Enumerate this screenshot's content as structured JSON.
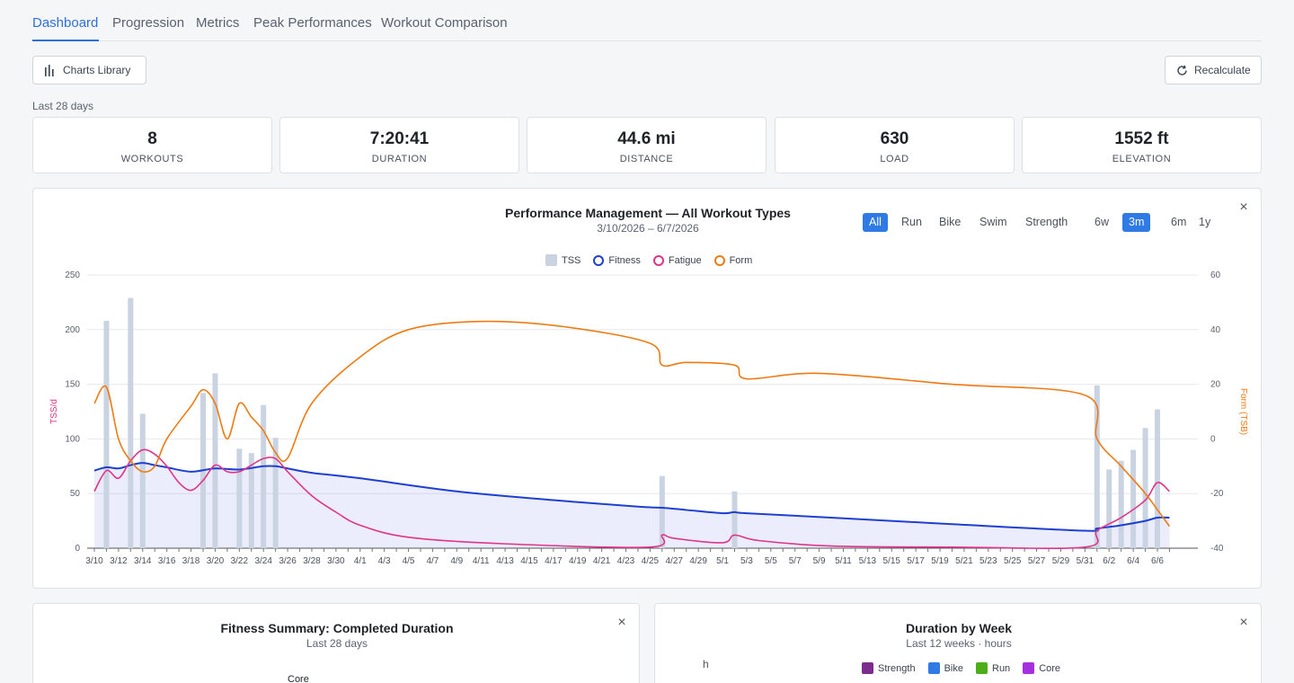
{
  "tabs": [
    {
      "label": "Dashboard",
      "active": true
    },
    {
      "label": "Progression",
      "active": false
    },
    {
      "label": "Metrics",
      "active": false
    },
    {
      "label": "Peak Performances",
      "active": false
    },
    {
      "label": "Workout Comparison",
      "active": false
    }
  ],
  "toolbar": {
    "charts_library_label": "Charts Library",
    "recalculate_label": "Recalculate"
  },
  "period_label": "Last 28 days",
  "stats": [
    {
      "value": "8",
      "label": "WORKOUTS"
    },
    {
      "value": "7:20:41",
      "label": "DURATION"
    },
    {
      "value": "44.6 mi",
      "label": "DISTANCE"
    },
    {
      "value": "630",
      "label": "LOAD"
    },
    {
      "value": "1552 ft",
      "label": "ELEVATION"
    }
  ],
  "pmc": {
    "title": "Performance Management — All Workout Types",
    "subtitle": "3/10/2026 – 6/7/2026",
    "type_filters": [
      {
        "label": "All",
        "active": true
      },
      {
        "label": "Run",
        "active": false
      },
      {
        "label": "Bike",
        "active": false
      },
      {
        "label": "Swim",
        "active": false
      },
      {
        "label": "Strength",
        "active": false
      }
    ],
    "range_filters": [
      {
        "label": "6w",
        "active": false
      },
      {
        "label": "3m",
        "active": true
      },
      {
        "label": "6m",
        "active": false
      },
      {
        "label": "1y",
        "active": false
      }
    ],
    "legend": [
      {
        "label": "TSS",
        "color": "#c9d3e1"
      },
      {
        "label": "Fitness",
        "color": "#1f3fd1"
      },
      {
        "label": "Fatigue",
        "color": "#e0348a"
      },
      {
        "label": "Form",
        "color": "#f07a12"
      }
    ],
    "close_label": "×"
  },
  "chart_data": {
    "type": "bar+line",
    "x_start": "3/10",
    "x_ticks": [
      "3/10",
      "3/12",
      "3/14",
      "3/16",
      "3/18",
      "3/20",
      "3/22",
      "3/24",
      "3/26",
      "3/28",
      "3/30",
      "4/1",
      "4/3",
      "4/5",
      "4/7",
      "4/9",
      "4/11",
      "4/13",
      "4/15",
      "4/17",
      "4/19",
      "4/21",
      "4/23",
      "4/25",
      "4/27",
      "4/29",
      "5/1",
      "5/3",
      "5/5",
      "5/7",
      "5/9",
      "5/11",
      "5/13",
      "5/15",
      "5/17",
      "5/19",
      "5/21",
      "5/23",
      "5/25",
      "5/27",
      "5/29",
      "5/31",
      "6/2",
      "6/4",
      "6/6"
    ],
    "ylabel": "TSS/d",
    "ylabel_right": "Form (TSB)",
    "ylim": [
      0,
      250
    ],
    "ylim_right": [
      -40,
      60
    ],
    "y_ticks": [
      0,
      50,
      100,
      150,
      200,
      250
    ],
    "y_ticks_right": [
      -40,
      -20,
      0,
      20,
      40,
      60
    ],
    "grid": true,
    "legend_position": "top-center",
    "tss": [
      {
        "date": "3/11",
        "value": 208
      },
      {
        "date": "3/13",
        "value": 229
      },
      {
        "date": "3/14",
        "value": 123
      },
      {
        "date": "3/19",
        "value": 142
      },
      {
        "date": "3/20",
        "value": 160
      },
      {
        "date": "3/22",
        "value": 91
      },
      {
        "date": "3/23",
        "value": 87
      },
      {
        "date": "3/24",
        "value": 131
      },
      {
        "date": "3/25",
        "value": 101
      },
      {
        "date": "4/26",
        "value": 66
      },
      {
        "date": "5/2",
        "value": 52
      },
      {
        "date": "6/1",
        "value": 149
      },
      {
        "date": "6/2",
        "value": 72
      },
      {
        "date": "6/3",
        "value": 80
      },
      {
        "date": "6/4",
        "value": 90
      },
      {
        "date": "6/5",
        "value": 110
      },
      {
        "date": "6/6",
        "value": 127
      }
    ],
    "series": [
      {
        "name": "Fitness",
        "axis": "left",
        "points": [
          [
            "3/10",
            71
          ],
          [
            "3/11",
            74
          ],
          [
            "3/12",
            73
          ],
          [
            "3/13",
            76
          ],
          [
            "3/14",
            78
          ],
          [
            "3/15",
            76
          ],
          [
            "3/16",
            74
          ],
          [
            "3/18",
            70
          ],
          [
            "3/20",
            73
          ],
          [
            "3/22",
            72
          ],
          [
            "3/24",
            75
          ],
          [
            "3/25",
            75
          ],
          [
            "3/26",
            73
          ],
          [
            "3/28",
            69
          ],
          [
            "4/1",
            64
          ],
          [
            "4/9",
            52
          ],
          [
            "4/17",
            44
          ],
          [
            "4/24",
            38
          ],
          [
            "4/26",
            37
          ],
          [
            "4/28",
            35
          ],
          [
            "5/1",
            32
          ],
          [
            "5/2",
            33
          ],
          [
            "5/3",
            32
          ],
          [
            "5/10",
            28
          ],
          [
            "5/20",
            22
          ],
          [
            "5/31",
            16
          ],
          [
            "6/1",
            18
          ],
          [
            "6/3",
            21
          ],
          [
            "6/5",
            25
          ],
          [
            "6/6",
            28
          ],
          [
            "6/7",
            28
          ]
        ]
      },
      {
        "name": "Fatigue",
        "axis": "left",
        "points": [
          [
            "3/10",
            52
          ],
          [
            "3/11",
            71
          ],
          [
            "3/12",
            64
          ],
          [
            "3/13",
            80
          ],
          [
            "3/14",
            90
          ],
          [
            "3/15",
            86
          ],
          [
            "3/16",
            75
          ],
          [
            "3/17",
            60
          ],
          [
            "3/18",
            53
          ],
          [
            "3/19",
            62
          ],
          [
            "3/20",
            76
          ],
          [
            "3/21",
            70
          ],
          [
            "3/22",
            70
          ],
          [
            "3/23",
            76
          ],
          [
            "3/24",
            82
          ],
          [
            "3/25",
            82
          ],
          [
            "3/26",
            70
          ],
          [
            "3/28",
            48
          ],
          [
            "3/30",
            33
          ],
          [
            "4/1",
            21
          ],
          [
            "4/5",
            10
          ],
          [
            "4/13",
            4
          ],
          [
            "4/25",
            1
          ],
          [
            "4/26",
            12
          ],
          [
            "4/27",
            9
          ],
          [
            "5/1",
            5
          ],
          [
            "5/2",
            12
          ],
          [
            "5/4",
            7
          ],
          [
            "5/10",
            2
          ],
          [
            "5/20",
            1
          ],
          [
            "5/31",
            1
          ],
          [
            "6/1",
            16
          ],
          [
            "6/3",
            28
          ],
          [
            "6/5",
            44
          ],
          [
            "6/6",
            60
          ],
          [
            "6/7",
            52
          ]
        ]
      },
      {
        "name": "Form",
        "axis": "right",
        "points": [
          [
            "3/10",
            13
          ],
          [
            "3/11",
            19
          ],
          [
            "3/12",
            0
          ],
          [
            "3/13",
            -8
          ],
          [
            "3/14",
            -12
          ],
          [
            "3/15",
            -10
          ],
          [
            "3/16",
            0
          ],
          [
            "3/18",
            12
          ],
          [
            "3/19",
            18
          ],
          [
            "3/20",
            13
          ],
          [
            "3/21",
            0
          ],
          [
            "3/22",
            13
          ],
          [
            "3/23",
            8
          ],
          [
            "3/24",
            3
          ],
          [
            "3/25",
            -5
          ],
          [
            "3/26",
            -7
          ],
          [
            "3/28",
            13
          ],
          [
            "4/1",
            30
          ],
          [
            "4/5",
            40
          ],
          [
            "4/11",
            43
          ],
          [
            "4/18",
            41
          ],
          [
            "4/25",
            35
          ],
          [
            "4/26",
            27
          ],
          [
            "4/28",
            28
          ],
          [
            "5/2",
            27
          ],
          [
            "5/3",
            22
          ],
          [
            "5/9",
            24
          ],
          [
            "5/20",
            20
          ],
          [
            "5/31",
            16
          ],
          [
            "6/1",
            0
          ],
          [
            "6/3",
            -10
          ],
          [
            "6/5",
            -20
          ],
          [
            "6/7",
            -32
          ]
        ]
      }
    ]
  },
  "summary_card": {
    "title": "Fitness Summary: Completed Duration",
    "subtitle": "Last 28 days",
    "visible_label": "Core",
    "close_label": "×"
  },
  "week_card": {
    "title": "Duration by Week",
    "subtitle": "Last 12 weeks · hours",
    "axis_unit": "h",
    "close_label": "×",
    "legend": [
      {
        "label": "Strength",
        "color": "#7b2d8e"
      },
      {
        "label": "Bike",
        "color": "#2f7ae5"
      },
      {
        "label": "Run",
        "color": "#4caf1a"
      },
      {
        "label": "Core",
        "color": "#a630e0"
      }
    ]
  }
}
